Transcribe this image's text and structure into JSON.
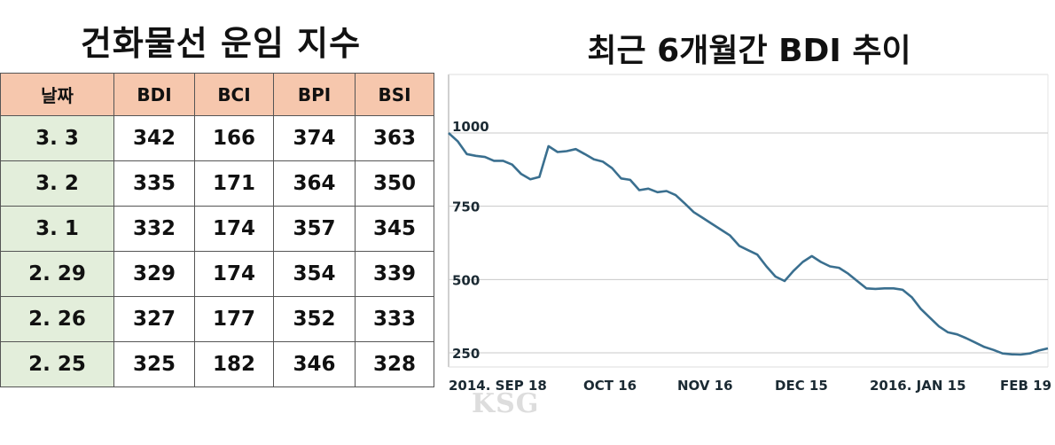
{
  "left_title": "건화물선 운임 지수",
  "right_title": "최근 6개월간 BDI 추이",
  "table": {
    "headers": [
      "날짜",
      "BDI",
      "BCI",
      "BPI",
      "BSI"
    ],
    "rows": [
      [
        "3. 3",
        "342",
        "166",
        "374",
        "363"
      ],
      [
        "3. 2",
        "335",
        "171",
        "364",
        "350"
      ],
      [
        "3. 1",
        "332",
        "174",
        "357",
        "345"
      ],
      [
        "2. 29",
        "329",
        "174",
        "354",
        "339"
      ],
      [
        "2. 26",
        "327",
        "177",
        "352",
        "333"
      ],
      [
        "2. 25",
        "325",
        "182",
        "346",
        "328"
      ]
    ]
  },
  "watermark": "KSG",
  "colors": {
    "header_bg": "#f6c7ad",
    "date_bg": "#e3eedb",
    "line": "#3a6f8f",
    "grid": "#c8c8c8"
  },
  "chart_data": {
    "type": "line",
    "title": "최근 6개월간 BDI 추이",
    "xlabel": "",
    "ylabel": "",
    "ylim": [
      250,
      1000
    ],
    "y_ticks": [
      "1000",
      "750",
      "500",
      "250"
    ],
    "y_tick_values": [
      1000,
      750,
      500,
      250
    ],
    "x_ticks": [
      "2014. SEP 18",
      "OCT 16",
      "NOV 16",
      "DEC 15",
      "2016. JAN 15",
      "FEB 19"
    ],
    "grid": true,
    "series": [
      {
        "values": [
          1000,
          972,
          928,
          922,
          918,
          905,
          905,
          892,
          860,
          842,
          850,
          955,
          935,
          938,
          945,
          928,
          910,
          902,
          880,
          845,
          840,
          805,
          810,
          798,
          802,
          788,
          760,
          730,
          710,
          690,
          670,
          650,
          615,
          600,
          585,
          545,
          510,
          495,
          530,
          560,
          580,
          560,
          545,
          540,
          520,
          495,
          470,
          468,
          470,
          470,
          465,
          440,
          400,
          370,
          340,
          320,
          313,
          300,
          285,
          270,
          260,
          248,
          245,
          244,
          248,
          258,
          265
        ]
      }
    ]
  }
}
